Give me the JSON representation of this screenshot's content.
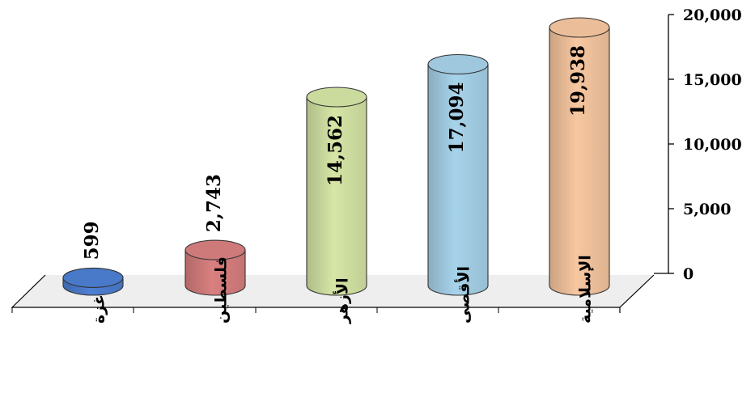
{
  "chart_data": {
    "type": "bar",
    "style": "3d-cylinder",
    "title": "",
    "xlabel": "",
    "ylabel": "",
    "ylim": [
      0,
      20000
    ],
    "yticks": [
      0,
      5000,
      10000,
      15000,
      20000
    ],
    "ytick_labels": [
      "0",
      "5,000",
      "10,000",
      "15,000",
      "20,000"
    ],
    "y_axis_side": "right",
    "grid": false,
    "legend": "none",
    "categories": [
      "غزة",
      "فلسطين",
      "الأزهر",
      "الأقصى",
      "الإسلامية"
    ],
    "values": [
      599,
      2743,
      14562,
      17094,
      19938
    ],
    "value_labels": [
      "599",
      "2,743",
      "14,562",
      "17,094",
      "19,938"
    ],
    "colors": [
      "#4d7fd4",
      "#d98080",
      "#d6e6a6",
      "#a7d3ea",
      "#f7c7a0"
    ]
  }
}
